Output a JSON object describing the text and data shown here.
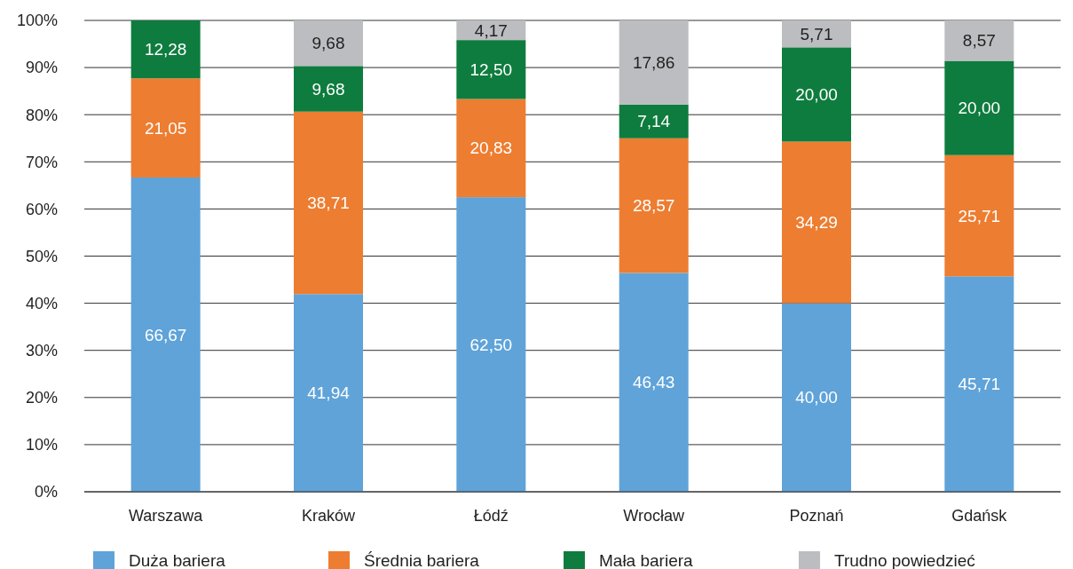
{
  "chart_data": {
    "type": "bar",
    "stacked": true,
    "categories": [
      "Warszawa",
      "Kraków",
      "Łódź",
      "Wrocław",
      "Poznań",
      "Gdańsk"
    ],
    "series": [
      {
        "name": "Duża bariera",
        "color": "#5fa3d9",
        "values": [
          66.67,
          41.94,
          62.5,
          46.43,
          40,
          45.71
        ],
        "value_labels": [
          "66,67",
          "41,94",
          "62,50",
          "46,43",
          "40,00",
          "45,71"
        ]
      },
      {
        "name": "Średnia bariera",
        "color": "#ed7d31",
        "values": [
          21.05,
          38.71,
          20.83,
          28.57,
          34.29,
          25.71
        ],
        "value_labels": [
          "21,05",
          "38,71",
          "20,83",
          "28,57",
          "34,29",
          "25,71"
        ]
      },
      {
        "name": "Mała bariera",
        "color": "#0e7c3e",
        "values": [
          12.28,
          9.68,
          12.5,
          7.14,
          20,
          20
        ],
        "value_labels": [
          "12,28",
          "9,68",
          "12,50",
          "7,14",
          "20,00",
          "20,00"
        ]
      },
      {
        "name": "Trudno powiedzieć",
        "color": "#bcbdc0",
        "values": [
          null,
          9.68,
          4.17,
          17.86,
          5.71,
          8.57
        ],
        "value_labels": [
          null,
          "9,68",
          "4,17",
          "17,86",
          "5,71",
          "8,57"
        ]
      }
    ],
    "ylim": [
      0,
      100
    ],
    "yticks": [
      {
        "value": 0,
        "label": "0%"
      },
      {
        "value": 10,
        "label": "10%"
      },
      {
        "value": 20,
        "label": "20%"
      },
      {
        "value": 30,
        "label": "30%"
      },
      {
        "value": 40,
        "label": "40%"
      },
      {
        "value": 50,
        "label": "50%"
      },
      {
        "value": 60,
        "label": "60%"
      },
      {
        "value": 70,
        "label": "70%"
      },
      {
        "value": 80,
        "label": "80%"
      },
      {
        "value": 90,
        "label": "90%"
      },
      {
        "value": 100,
        "label": "100%"
      }
    ],
    "grid": "y",
    "legend": "bottom"
  }
}
